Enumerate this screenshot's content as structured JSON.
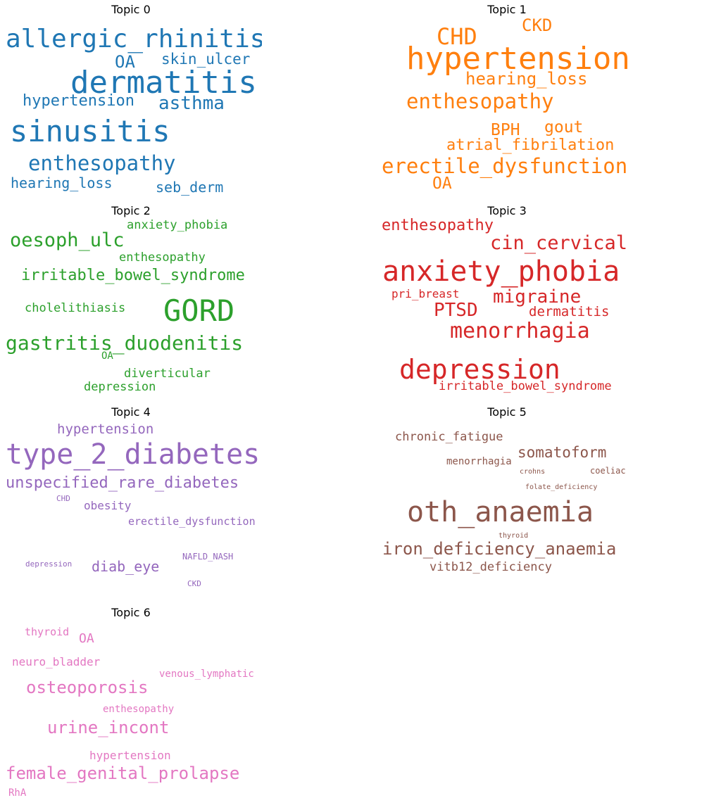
{
  "chart_data": {
    "type": "wordcloud",
    "panels": [
      {
        "title": "Topic 0",
        "color": "#1f77b4",
        "words": [
          {
            "text": "allergic_rhinitis",
            "size": 36
          },
          {
            "text": "OA",
            "size": 24
          },
          {
            "text": "skin_ulcer",
            "size": 21
          },
          {
            "text": "dermatitis",
            "size": 44
          },
          {
            "text": "hypertension",
            "size": 22
          },
          {
            "text": "asthma",
            "size": 26
          },
          {
            "text": "sinusitis",
            "size": 42
          },
          {
            "text": "enthesopathy",
            "size": 29
          },
          {
            "text": "hearing_loss",
            "size": 20
          },
          {
            "text": "seb_derm",
            "size": 20
          }
        ]
      },
      {
        "title": "Topic 1",
        "color": "#ff7f0e",
        "words": [
          {
            "text": "CKD",
            "size": 24
          },
          {
            "text": "CHD",
            "size": 32
          },
          {
            "text": "hypertension",
            "size": 44
          },
          {
            "text": "hearing_loss",
            "size": 24
          },
          {
            "text": "enthesopathy",
            "size": 29
          },
          {
            "text": "gout",
            "size": 23
          },
          {
            "text": "BPH",
            "size": 23
          },
          {
            "text": "atrial_fibrilation",
            "size": 22
          },
          {
            "text": "erectile_dysfunction",
            "size": 29
          },
          {
            "text": "OA",
            "size": 23
          }
        ]
      },
      {
        "title": "Topic 2",
        "color": "#2ca02c",
        "words": [
          {
            "text": "anxiety_phobia",
            "size": 17
          },
          {
            "text": "oesoph_ulc",
            "size": 27
          },
          {
            "text": "enthesopathy",
            "size": 17
          },
          {
            "text": "irritable_bowel_syndrome",
            "size": 22
          },
          {
            "text": "cholelithiasis",
            "size": 17
          },
          {
            "text": "GORD",
            "size": 42
          },
          {
            "text": "gastritis_duodenitis",
            "size": 28
          },
          {
            "text": "OA",
            "size": 14
          },
          {
            "text": "diverticular",
            "size": 17
          },
          {
            "text": "depression",
            "size": 17
          }
        ]
      },
      {
        "title": "Topic 3",
        "color": "#d62728",
        "words": [
          {
            "text": "enthesopathy",
            "size": 22
          },
          {
            "text": "cin_cervical",
            "size": 27
          },
          {
            "text": "anxiety_phobia",
            "size": 40
          },
          {
            "text": "pri_breast",
            "size": 16
          },
          {
            "text": "migraine",
            "size": 26
          },
          {
            "text": "PTSD",
            "size": 26
          },
          {
            "text": "dermatitis",
            "size": 19
          },
          {
            "text": "menorrhagia",
            "size": 30
          },
          {
            "text": "depression",
            "size": 38
          },
          {
            "text": "irritable_bowel_syndrome",
            "size": 17
          }
        ]
      },
      {
        "title": "Topic 4",
        "color": "#9467bd",
        "words": [
          {
            "text": "hypertension",
            "size": 19
          },
          {
            "text": "type_2_diabetes",
            "size": 40
          },
          {
            "text": "unspecified_rare_diabetes",
            "size": 22
          },
          {
            "text": "CHD",
            "size": 11
          },
          {
            "text": "obesity",
            "size": 16
          },
          {
            "text": "erectile_dysfunction",
            "size": 15
          },
          {
            "text": "NAFLD_NASH",
            "size": 12
          },
          {
            "text": "depression",
            "size": 11
          },
          {
            "text": "diab_eye",
            "size": 20
          },
          {
            "text": "CKD",
            "size": 11
          }
        ]
      },
      {
        "title": "Topic 5",
        "color": "#8c564b",
        "words": [
          {
            "text": "chronic_fatigue",
            "size": 17
          },
          {
            "text": "somatoform",
            "size": 21
          },
          {
            "text": "menorrhagia",
            "size": 14
          },
          {
            "text": "crohns",
            "size": 10
          },
          {
            "text": "coeliac",
            "size": 12
          },
          {
            "text": "folate_deficiency",
            "size": 10
          },
          {
            "text": "oth_anaemia",
            "size": 40
          },
          {
            "text": "thyroid",
            "size": 10
          },
          {
            "text": "iron_deficiency_anaemia",
            "size": 24
          },
          {
            "text": "vitb12_deficiency",
            "size": 17
          }
        ]
      },
      {
        "title": "Topic 6",
        "color": "#e377c2",
        "words": [
          {
            "text": "thyroid",
            "size": 15
          },
          {
            "text": "OA",
            "size": 18
          },
          {
            "text": "neuro_bladder",
            "size": 16
          },
          {
            "text": "venous_lymphatic",
            "size": 14
          },
          {
            "text": "osteoporosis",
            "size": 24
          },
          {
            "text": "enthesopathy",
            "size": 14
          },
          {
            "text": "urine_incont",
            "size": 24
          },
          {
            "text": "hypertension",
            "size": 16
          },
          {
            "text": "female_genital_prolapse",
            "size": 24
          },
          {
            "text": "RhA",
            "size": 14
          }
        ]
      }
    ]
  }
}
